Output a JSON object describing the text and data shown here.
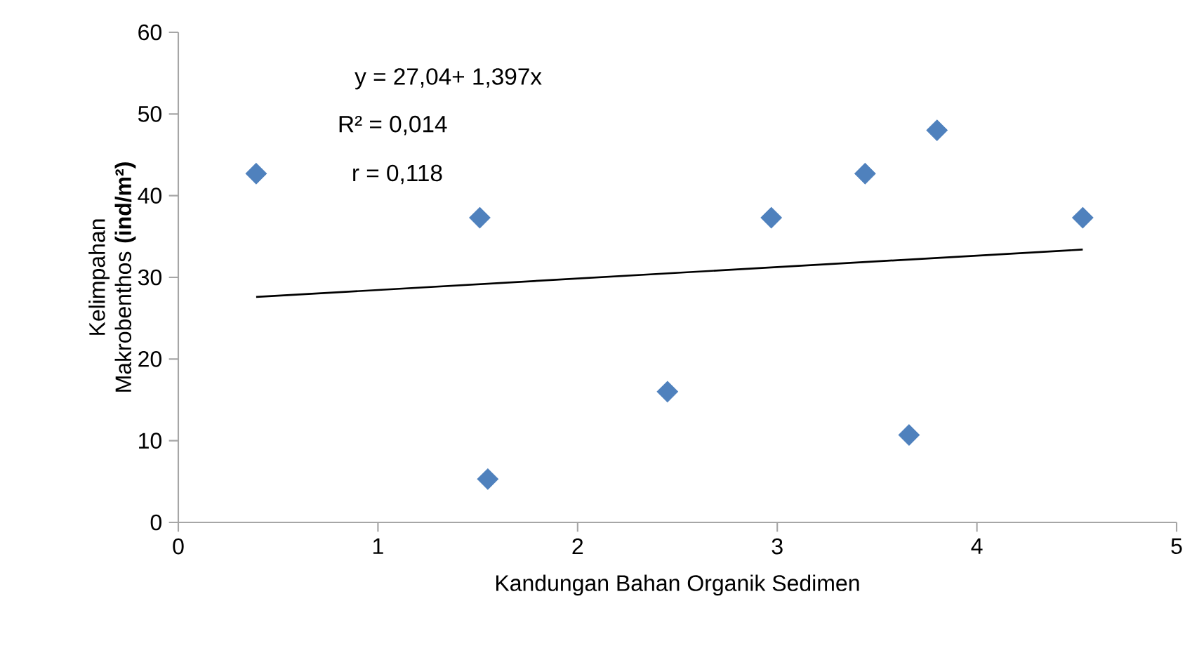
{
  "chart_data": {
    "type": "scatter",
    "xlabel": "Kandungan Bahan Organik Sedimen",
    "ylabel": "Kelimpahan Makrobenthos **(ind/m²)**",
    "xlim": [
      0,
      5
    ],
    "xticks": [
      0,
      1,
      2,
      3,
      4,
      5
    ],
    "ylim": [
      0,
      60
    ],
    "yticks": [
      0,
      10,
      20,
      30,
      40,
      50,
      60
    ],
    "marker": "diamond",
    "grid": false,
    "x": [
      0.39,
      1.51,
      1.55,
      2.45,
      2.97,
      3.44,
      3.8,
      3.66,
      4.53
    ],
    "series": [
      {
        "color": "#4f81bd",
        "values": [
          42.7,
          37.3,
          5.3,
          16,
          37.3,
          42.7,
          48,
          10.7,
          37.3
        ]
      },
      {
        "type": "line",
        "color": "#000000",
        "marker": "none",
        "line_style": "solid",
        "x": [
          0.39,
          4.53
        ],
        "values": [
          27.6,
          33.4
        ]
      }
    ],
    "annotations": [
      "y = 27,04+ 1,397x",
      "R² = 0,014",
      "r =  0,118"
    ]
  }
}
